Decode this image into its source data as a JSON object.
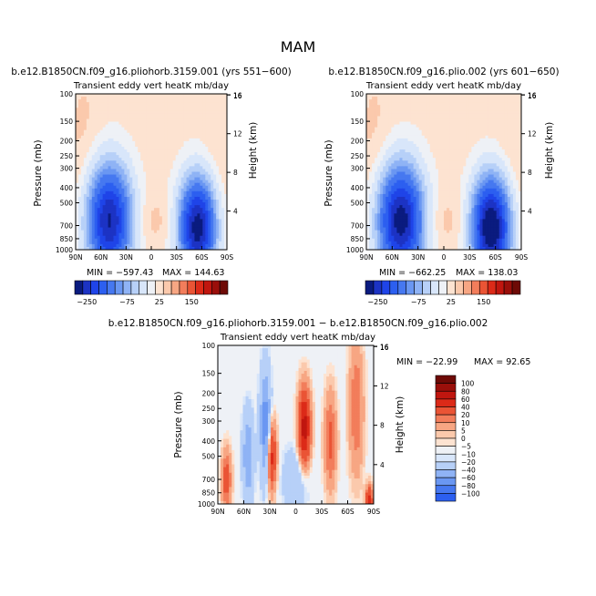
{
  "page": {
    "title": "MAM"
  },
  "colors": {
    "neg": [
      "#0a1b7f",
      "#1c33c4",
      "#1f44e8",
      "#2c5ff0",
      "#4678f0",
      "#6a97f2",
      "#8fb3f5",
      "#b7d0f8",
      "#d8e6fa"
    ],
    "zero": "#eef1f6",
    "pos": [
      "#fde3d1",
      "#fbc9ac",
      "#f7a683",
      "#f27d5b",
      "#ea5435",
      "#dc2a18",
      "#c0160f",
      "#9a0f0a",
      "#6e0a06"
    ]
  },
  "chart_data": [
    {
      "id": "panel1",
      "type": "contour",
      "title": "b.e12.B1850CN.f09_g16.pliohorb.3159.001 (yrs 551−600)",
      "subtitle": "Transient eddy vert heatK mb/day",
      "ylabel": "Pressure (mb)",
      "ylabel_right": "Height (km)",
      "x_ticks": [
        "90N",
        "60N",
        "30N",
        "0",
        "30S",
        "60S",
        "90S"
      ],
      "y_ticks": [
        "100",
        "150",
        "200",
        "250",
        "300",
        "400",
        "500",
        "700",
        "850",
        "1000"
      ],
      "height_ticks": [
        "16",
        "12",
        "8",
        "4"
      ],
      "min_label": "MIN = −597.43",
      "max_label": "MAX = 144.63",
      "features": [
        {
          "lat": 50,
          "p": 650,
          "value": -560,
          "wlat": 18,
          "wp": 0.55
        },
        {
          "lat": -55,
          "p": 720,
          "value": -597,
          "wlat": 15,
          "wp": 0.5
        },
        {
          "lat": 0,
          "p": 650,
          "value": 30,
          "wlat": 20,
          "wp": 0.25
        },
        {
          "lat": 80,
          "p": 250,
          "value": 25,
          "wlat": 15,
          "wp": 0.9
        },
        {
          "lat": -80,
          "p": 300,
          "value": 20,
          "wlat": 15,
          "wp": 0.9
        }
      ],
      "colorbar": {
        "ticks": [
          "−250",
          "−75",
          "25",
          "150"
        ]
      }
    },
    {
      "id": "panel2",
      "type": "contour",
      "title": "b.e12.B1850CN.f09_g16.plio.002 (yrs 601−650)",
      "subtitle": "Transient eddy vert heatK mb/day",
      "ylabel": "Pressure (mb)",
      "ylabel_right": "Height (km)",
      "x_ticks": [
        "90N",
        "60N",
        "30N",
        "0",
        "30S",
        "60S",
        "90S"
      ],
      "y_ticks": [
        "100",
        "150",
        "200",
        "250",
        "300",
        "400",
        "500",
        "700",
        "850",
        "1000"
      ],
      "height_ticks": [
        "16",
        "12",
        "8",
        "4"
      ],
      "min_label": "MIN = −662.25",
      "max_label": "MAX = 138.03",
      "features": [
        {
          "lat": 50,
          "p": 650,
          "value": -600,
          "wlat": 18,
          "wp": 0.55
        },
        {
          "lat": -55,
          "p": 720,
          "value": -662,
          "wlat": 15,
          "wp": 0.5
        },
        {
          "lat": 0,
          "p": 650,
          "value": 30,
          "wlat": 20,
          "wp": 0.25
        },
        {
          "lat": 80,
          "p": 250,
          "value": 25,
          "wlat": 15,
          "wp": 0.9
        },
        {
          "lat": -80,
          "p": 300,
          "value": 20,
          "wlat": 15,
          "wp": 0.9
        }
      ],
      "colorbar": {
        "ticks": [
          "−250",
          "−75",
          "25",
          "150"
        ]
      }
    },
    {
      "id": "panel3",
      "type": "contour",
      "title": "b.e12.B1850CN.f09_g16.pliohorb.3159.001 − b.e12.B1850CN.f09_g16.plio.002",
      "subtitle": "Transient eddy vert heatK mb/day",
      "ylabel": "Pressure (mb)",
      "ylabel_right": "Height (km)",
      "x_ticks": [
        "90N",
        "60N",
        "30N",
        "0",
        "30S",
        "60S",
        "90S"
      ],
      "y_ticks": [
        "100",
        "150",
        "200",
        "250",
        "300",
        "400",
        "500",
        "700",
        "850",
        "1000"
      ],
      "height_ticks": [
        "16",
        "12",
        "8",
        "4"
      ],
      "min_label": "MIN = −22.99",
      "max_label": "MAX = 92.65",
      "features": [
        {
          "lat": -10,
          "p": 330,
          "value": 16,
          "wlat": 5,
          "wp": 0.4
        },
        {
          "lat": 35,
          "p": 320,
          "value": -14,
          "wlat": 4,
          "wp": 0.5
        },
        {
          "lat": 28,
          "p": 500,
          "value": 12,
          "wlat": 4,
          "wp": 0.35
        },
        {
          "lat": 55,
          "p": 500,
          "value": -10,
          "wlat": 4,
          "wp": 0.4
        },
        {
          "lat": -40,
          "p": 400,
          "value": 7,
          "wlat": 5,
          "wp": 0.5
        },
        {
          "lat": 80,
          "p": 700,
          "value": 8,
          "wlat": 4,
          "wp": 0.3
        },
        {
          "lat": -70,
          "p": 250,
          "value": 6,
          "wlat": 6,
          "wp": 0.7
        },
        {
          "lat": 0,
          "p": 700,
          "value": -4,
          "wlat": 10,
          "wp": 0.3
        },
        {
          "lat": -85,
          "p": 950,
          "value": 12,
          "wlat": 3,
          "wp": 0.15
        }
      ],
      "colorbar": {
        "labels": [
          "100",
          "80",
          "60",
          "40",
          "20",
          "10",
          "5",
          "0",
          "−5",
          "−10",
          "−20",
          "−40",
          "−60",
          "−80",
          "−100"
        ]
      }
    }
  ]
}
